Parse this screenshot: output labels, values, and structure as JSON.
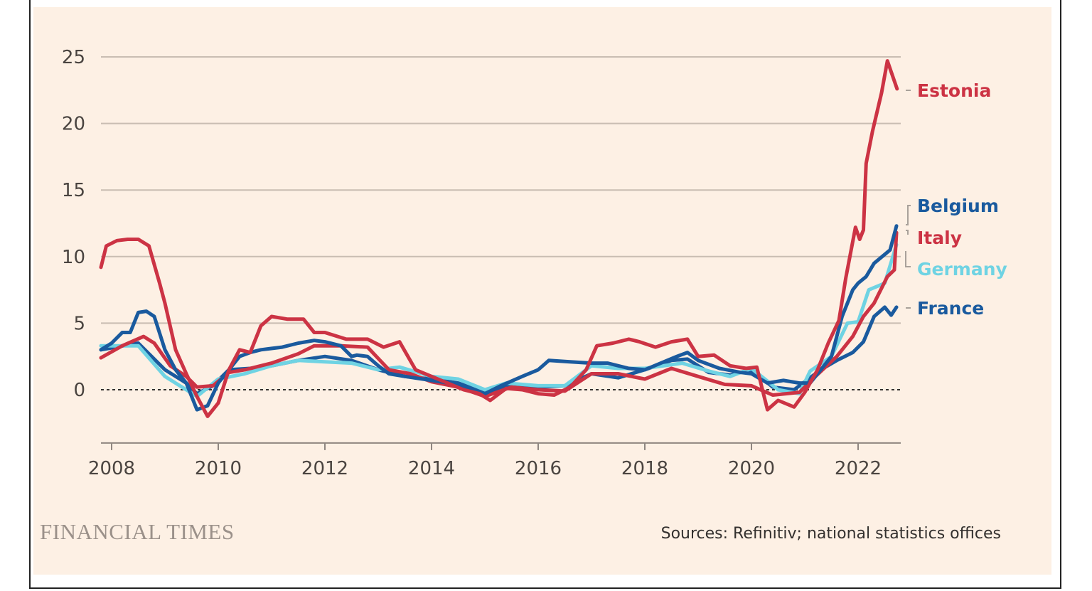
{
  "chart_data": {
    "type": "line",
    "title": "",
    "xlabel": "",
    "ylabel": "",
    "xlim": [
      2007.8,
      2022.8
    ],
    "ylim": [
      -4,
      25
    ],
    "x_ticks": [
      "2008",
      "2010",
      "2012",
      "2014",
      "2016",
      "2018",
      "2020",
      "2022"
    ],
    "y_ticks": [
      "0",
      "5",
      "10",
      "15",
      "20",
      "25"
    ],
    "grid": "horizontal",
    "zero_line": "dotted",
    "legend": "direct labels at right end",
    "series": [
      {
        "name": "France",
        "color": "#1A5A9E",
        "points": [
          [
            2007.8,
            3.0
          ],
          [
            2008.5,
            3.5
          ],
          [
            2009.0,
            1.5
          ],
          [
            2009.4,
            0.5
          ],
          [
            2009.6,
            -0.3
          ],
          [
            2009.9,
            0.3
          ],
          [
            2010.2,
            1.5
          ],
          [
            2010.6,
            1.6
          ],
          [
            2011.0,
            1.8
          ],
          [
            2011.5,
            2.2
          ],
          [
            2012.0,
            2.5
          ],
          [
            2012.5,
            2.2
          ],
          [
            2013.0,
            1.5
          ],
          [
            2013.5,
            1.0
          ],
          [
            2014.0,
            0.8
          ],
          [
            2014.5,
            0.5
          ],
          [
            2015.0,
            -0.2
          ],
          [
            2015.5,
            0.3
          ],
          [
            2016.0,
            0.2
          ],
          [
            2016.5,
            0.3
          ],
          [
            2017.0,
            1.2
          ],
          [
            2017.5,
            0.9
          ],
          [
            2018.0,
            1.5
          ],
          [
            2018.5,
            2.2
          ],
          [
            2018.8,
            2.3
          ],
          [
            2019.2,
            1.3
          ],
          [
            2019.6,
            1.1
          ],
          [
            2020.0,
            1.5
          ],
          [
            2020.4,
            0.2
          ],
          [
            2020.8,
            0.0
          ],
          [
            2021.0,
            0.6
          ],
          [
            2021.3,
            1.5
          ],
          [
            2021.6,
            2.2
          ],
          [
            2021.9,
            2.8
          ],
          [
            2022.1,
            3.6
          ],
          [
            2022.3,
            5.5
          ],
          [
            2022.5,
            6.2
          ],
          [
            2022.62,
            5.6
          ],
          [
            2022.72,
            6.2
          ]
        ]
      },
      {
        "name": "Germany",
        "color": "#6FD3E3",
        "points": [
          [
            2007.8,
            3.3
          ],
          [
            2008.5,
            3.3
          ],
          [
            2009.0,
            1.0
          ],
          [
            2009.4,
            0.0
          ],
          [
            2009.6,
            -0.5
          ],
          [
            2010.0,
            0.8
          ],
          [
            2010.5,
            1.2
          ],
          [
            2011.0,
            1.8
          ],
          [
            2011.5,
            2.2
          ],
          [
            2012.0,
            2.1
          ],
          [
            2012.5,
            2.0
          ],
          [
            2013.0,
            1.5
          ],
          [
            2013.4,
            1.7
          ],
          [
            2014.0,
            1.0
          ],
          [
            2014.5,
            0.8
          ],
          [
            2015.0,
            0.0
          ],
          [
            2015.4,
            0.5
          ],
          [
            2016.0,
            0.3
          ],
          [
            2016.5,
            0.3
          ],
          [
            2017.0,
            1.8
          ],
          [
            2017.5,
            1.6
          ],
          [
            2018.0,
            1.6
          ],
          [
            2018.7,
            2.0
          ],
          [
            2019.2,
            1.4
          ],
          [
            2019.6,
            1.0
          ],
          [
            2020.0,
            1.6
          ],
          [
            2020.5,
            0.0
          ],
          [
            2020.9,
            -0.3
          ],
          [
            2021.1,
            1.4
          ],
          [
            2021.5,
            2.5
          ],
          [
            2021.8,
            5.0
          ],
          [
            2022.0,
            5.1
          ],
          [
            2022.2,
            7.5
          ],
          [
            2022.5,
            8.0
          ],
          [
            2022.72,
            10.9
          ]
        ]
      },
      {
        "name": "Italy",
        "color": "#CC3344",
        "points": [
          [
            2007.8,
            2.4
          ],
          [
            2008.2,
            3.3
          ],
          [
            2008.6,
            4.0
          ],
          [
            2008.8,
            3.5
          ],
          [
            2009.1,
            1.8
          ],
          [
            2009.4,
            1.0
          ],
          [
            2009.6,
            0.2
          ],
          [
            2009.9,
            0.3
          ],
          [
            2010.2,
            1.3
          ],
          [
            2010.5,
            1.5
          ],
          [
            2011.0,
            2.0
          ],
          [
            2011.5,
            2.7
          ],
          [
            2011.8,
            3.3
          ],
          [
            2012.3,
            3.3
          ],
          [
            2012.8,
            3.2
          ],
          [
            2013.2,
            1.5
          ],
          [
            2013.6,
            1.2
          ],
          [
            2014.0,
            0.6
          ],
          [
            2014.5,
            0.2
          ],
          [
            2015.0,
            -0.5
          ],
          [
            2015.5,
            0.2
          ],
          [
            2016.0,
            0.0
          ],
          [
            2016.5,
            -0.1
          ],
          [
            2017.0,
            1.2
          ],
          [
            2017.5,
            1.2
          ],
          [
            2018.0,
            0.8
          ],
          [
            2018.5,
            1.6
          ],
          [
            2019.0,
            1.0
          ],
          [
            2019.5,
            0.4
          ],
          [
            2020.0,
            0.3
          ],
          [
            2020.4,
            -0.4
          ],
          [
            2020.9,
            -0.2
          ],
          [
            2021.2,
            1.0
          ],
          [
            2021.6,
            2.5
          ],
          [
            2021.9,
            4.0
          ],
          [
            2022.1,
            5.5
          ],
          [
            2022.3,
            6.5
          ],
          [
            2022.55,
            8.5
          ],
          [
            2022.68,
            9.0
          ],
          [
            2022.72,
            11.8
          ]
        ]
      },
      {
        "name": "Belgium",
        "color": "#1A5A9E",
        "points": [
          [
            2007.8,
            3.0
          ],
          [
            2008.0,
            3.5
          ],
          [
            2008.2,
            4.3
          ],
          [
            2008.35,
            4.3
          ],
          [
            2008.5,
            5.8
          ],
          [
            2008.65,
            5.9
          ],
          [
            2008.8,
            5.5
          ],
          [
            2009.0,
            3.0
          ],
          [
            2009.2,
            1.5
          ],
          [
            2009.4,
            0.5
          ],
          [
            2009.6,
            -1.5
          ],
          [
            2009.8,
            -1.2
          ],
          [
            2010.0,
            0.5
          ],
          [
            2010.2,
            1.5
          ],
          [
            2010.4,
            2.5
          ],
          [
            2010.6,
            2.8
          ],
          [
            2010.8,
            3.0
          ],
          [
            2011.2,
            3.2
          ],
          [
            2011.5,
            3.5
          ],
          [
            2011.8,
            3.7
          ],
          [
            2012.0,
            3.6
          ],
          [
            2012.3,
            3.3
          ],
          [
            2012.5,
            2.5
          ],
          [
            2012.6,
            2.6
          ],
          [
            2012.8,
            2.5
          ],
          [
            2013.0,
            1.8
          ],
          [
            2013.2,
            1.2
          ],
          [
            2013.5,
            1.0
          ],
          [
            2014.0,
            0.7
          ],
          [
            2014.5,
            0.4
          ],
          [
            2015.0,
            -0.3
          ],
          [
            2015.3,
            0.3
          ],
          [
            2015.7,
            1.0
          ],
          [
            2016.0,
            1.5
          ],
          [
            2016.2,
            2.2
          ],
          [
            2016.6,
            2.1
          ],
          [
            2017.0,
            2.0
          ],
          [
            2017.3,
            2.0
          ],
          [
            2017.7,
            1.6
          ],
          [
            2018.0,
            1.5
          ],
          [
            2018.3,
            2.0
          ],
          [
            2018.6,
            2.5
          ],
          [
            2018.8,
            2.8
          ],
          [
            2019.0,
            2.2
          ],
          [
            2019.4,
            1.6
          ],
          [
            2019.8,
            1.3
          ],
          [
            2020.0,
            1.2
          ],
          [
            2020.3,
            0.5
          ],
          [
            2020.6,
            0.7
          ],
          [
            2020.9,
            0.5
          ],
          [
            2021.1,
            0.5
          ],
          [
            2021.3,
            1.5
          ],
          [
            2021.5,
            2.5
          ],
          [
            2021.7,
            5.5
          ],
          [
            2021.9,
            7.5
          ],
          [
            2022.0,
            8.0
          ],
          [
            2022.15,
            8.5
          ],
          [
            2022.3,
            9.5
          ],
          [
            2022.45,
            10.0
          ],
          [
            2022.6,
            10.5
          ],
          [
            2022.72,
            12.3
          ]
        ]
      },
      {
        "name": "Estonia",
        "color": "#CC3344",
        "points": [
          [
            2007.8,
            9.2
          ],
          [
            2007.9,
            10.8
          ],
          [
            2008.1,
            11.2
          ],
          [
            2008.3,
            11.3
          ],
          [
            2008.5,
            11.3
          ],
          [
            2008.7,
            10.8
          ],
          [
            2008.9,
            8.0
          ],
          [
            2009.0,
            6.5
          ],
          [
            2009.2,
            3.0
          ],
          [
            2009.4,
            1.2
          ],
          [
            2009.6,
            -0.5
          ],
          [
            2009.8,
            -2.0
          ],
          [
            2010.0,
            -1.0
          ],
          [
            2010.2,
            1.5
          ],
          [
            2010.4,
            3.0
          ],
          [
            2010.6,
            2.8
          ],
          [
            2010.8,
            4.8
          ],
          [
            2011.0,
            5.5
          ],
          [
            2011.3,
            5.3
          ],
          [
            2011.6,
            5.3
          ],
          [
            2011.8,
            4.3
          ],
          [
            2012.0,
            4.3
          ],
          [
            2012.4,
            3.8
          ],
          [
            2012.8,
            3.8
          ],
          [
            2013.1,
            3.2
          ],
          [
            2013.4,
            3.6
          ],
          [
            2013.7,
            1.5
          ],
          [
            2014.0,
            1.0
          ],
          [
            2014.3,
            0.5
          ],
          [
            2014.6,
            0.0
          ],
          [
            2014.9,
            -0.3
          ],
          [
            2015.1,
            -0.8
          ],
          [
            2015.4,
            0.1
          ],
          [
            2015.7,
            0.0
          ],
          [
            2016.0,
            -0.3
          ],
          [
            2016.3,
            -0.4
          ],
          [
            2016.6,
            0.2
          ],
          [
            2016.9,
            1.5
          ],
          [
            2017.1,
            3.3
          ],
          [
            2017.4,
            3.5
          ],
          [
            2017.7,
            3.8
          ],
          [
            2017.9,
            3.6
          ],
          [
            2018.2,
            3.2
          ],
          [
            2018.5,
            3.6
          ],
          [
            2018.8,
            3.8
          ],
          [
            2019.0,
            2.5
          ],
          [
            2019.3,
            2.6
          ],
          [
            2019.6,
            1.8
          ],
          [
            2019.9,
            1.6
          ],
          [
            2020.1,
            1.7
          ],
          [
            2020.3,
            -1.5
          ],
          [
            2020.5,
            -0.8
          ],
          [
            2020.8,
            -1.3
          ],
          [
            2021.0,
            -0.2
          ],
          [
            2021.24,
            1.5
          ],
          [
            2021.44,
            3.5
          ],
          [
            2021.64,
            5.2
          ],
          [
            2021.77,
            8.4
          ],
          [
            2021.95,
            12.2
          ],
          [
            2022.03,
            11.3
          ],
          [
            2022.1,
            12.0
          ],
          [
            2022.15,
            17.0
          ],
          [
            2022.27,
            19.4
          ],
          [
            2022.44,
            22.3
          ],
          [
            2022.55,
            24.7
          ],
          [
            2022.73,
            22.6
          ]
        ]
      }
    ]
  },
  "footer": {
    "brand": "FINANCIAL TIMES",
    "source": "Sources: Refinitiv; national statistics offices"
  }
}
